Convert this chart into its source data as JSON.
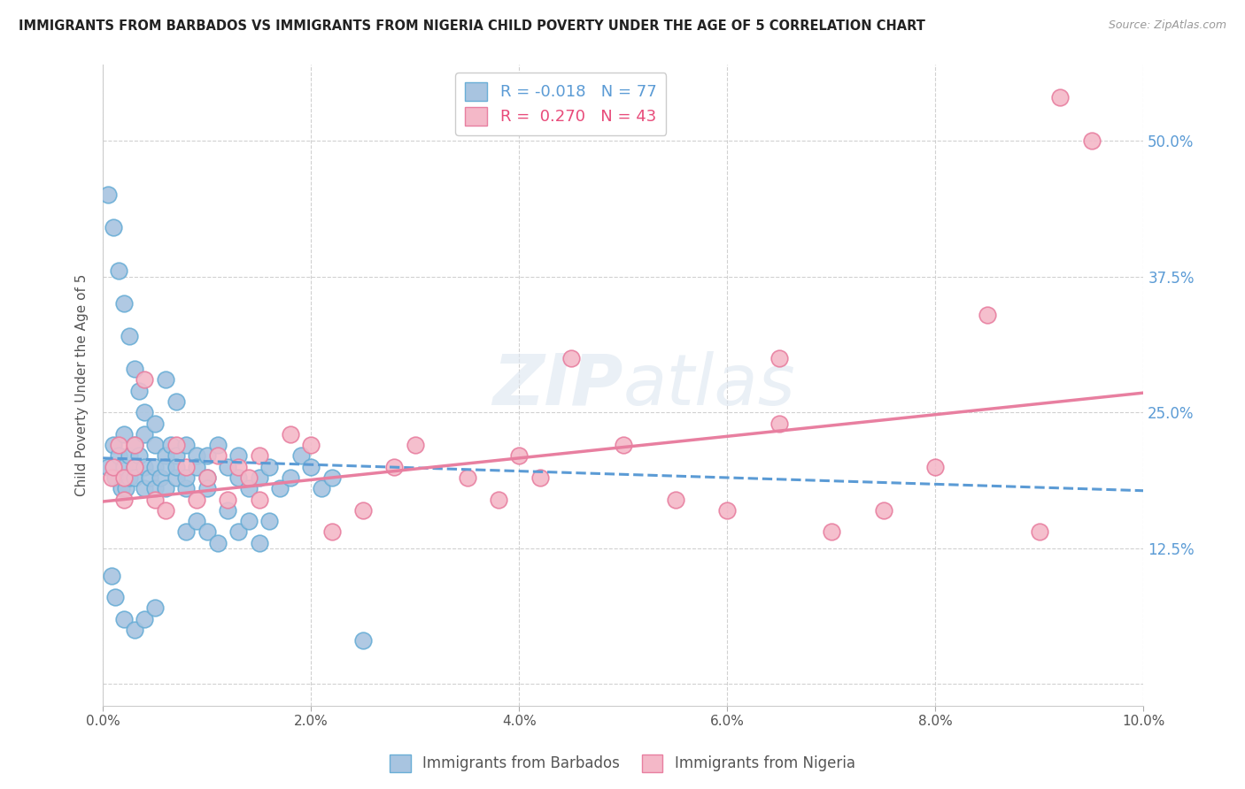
{
  "title": "IMMIGRANTS FROM BARBADOS VS IMMIGRANTS FROM NIGERIA CHILD POVERTY UNDER THE AGE OF 5 CORRELATION CHART",
  "source": "Source: ZipAtlas.com",
  "ylabel": "Child Poverty Under the Age of 5",
  "ytick_labels": [
    "",
    "12.5%",
    "25.0%",
    "37.5%",
    "50.0%"
  ],
  "ytick_values": [
    0.0,
    0.125,
    0.25,
    0.375,
    0.5
  ],
  "xmin": 0.0,
  "xmax": 0.1,
  "ymin": -0.02,
  "ymax": 0.57,
  "barbados_color": "#a8c4e0",
  "barbados_edge": "#6aaed6",
  "nigeria_color": "#f4b8c8",
  "nigeria_edge": "#e87fa0",
  "trend_barbados_color": "#5b9bd5",
  "trend_nigeria_color": "#e87fa0",
  "r_barbados": -0.018,
  "n_barbados": 77,
  "r_nigeria": 0.27,
  "n_nigeria": 43,
  "legend_label_barbados": "Immigrants from Barbados",
  "legend_label_nigeria": "Immigrants from Nigeria",
  "watermark": "ZIPatlas",
  "trend_b_x0": 0.0,
  "trend_b_y0": 0.208,
  "trend_b_x1": 0.1,
  "trend_b_y1": 0.178,
  "trend_n_x0": 0.0,
  "trend_n_y0": 0.168,
  "trend_n_x1": 0.1,
  "trend_n_y1": 0.268,
  "barbados_x": [
    0.0005,
    0.001,
    0.0012,
    0.0015,
    0.0018,
    0.002,
    0.002,
    0.0022,
    0.0025,
    0.0025,
    0.003,
    0.003,
    0.003,
    0.0035,
    0.004,
    0.004,
    0.004,
    0.0045,
    0.005,
    0.005,
    0.005,
    0.0055,
    0.006,
    0.006,
    0.006,
    0.0065,
    0.007,
    0.007,
    0.007,
    0.008,
    0.008,
    0.008,
    0.009,
    0.009,
    0.01,
    0.01,
    0.01,
    0.011,
    0.012,
    0.013,
    0.013,
    0.014,
    0.015,
    0.016,
    0.017,
    0.018,
    0.019,
    0.02,
    0.021,
    0.022,
    0.0005,
    0.001,
    0.0015,
    0.002,
    0.0025,
    0.003,
    0.0035,
    0.004,
    0.005,
    0.006,
    0.007,
    0.008,
    0.009,
    0.01,
    0.011,
    0.012,
    0.013,
    0.014,
    0.015,
    0.016,
    0.0008,
    0.0012,
    0.002,
    0.003,
    0.004,
    0.005,
    0.025
  ],
  "barbados_y": [
    0.2,
    0.22,
    0.19,
    0.21,
    0.18,
    0.2,
    0.23,
    0.18,
    0.19,
    0.21,
    0.2,
    0.22,
    0.19,
    0.21,
    0.18,
    0.2,
    0.23,
    0.19,
    0.2,
    0.22,
    0.18,
    0.19,
    0.21,
    0.2,
    0.18,
    0.22,
    0.19,
    0.21,
    0.2,
    0.18,
    0.22,
    0.19,
    0.21,
    0.2,
    0.19,
    0.21,
    0.18,
    0.22,
    0.2,
    0.19,
    0.21,
    0.18,
    0.19,
    0.2,
    0.18,
    0.19,
    0.21,
    0.2,
    0.18,
    0.19,
    0.45,
    0.42,
    0.38,
    0.35,
    0.32,
    0.29,
    0.27,
    0.25,
    0.24,
    0.28,
    0.26,
    0.14,
    0.15,
    0.14,
    0.13,
    0.16,
    0.14,
    0.15,
    0.13,
    0.15,
    0.1,
    0.08,
    0.06,
    0.05,
    0.06,
    0.07,
    0.04
  ],
  "nigeria_x": [
    0.0008,
    0.001,
    0.0015,
    0.002,
    0.002,
    0.003,
    0.003,
    0.004,
    0.005,
    0.006,
    0.007,
    0.008,
    0.009,
    0.01,
    0.011,
    0.012,
    0.013,
    0.014,
    0.015,
    0.015,
    0.018,
    0.02,
    0.022,
    0.025,
    0.028,
    0.03,
    0.035,
    0.038,
    0.04,
    0.042,
    0.045,
    0.05,
    0.055,
    0.06,
    0.065,
    0.065,
    0.07,
    0.075,
    0.08,
    0.085,
    0.09,
    0.092,
    0.095
  ],
  "nigeria_y": [
    0.19,
    0.2,
    0.22,
    0.19,
    0.17,
    0.2,
    0.22,
    0.28,
    0.17,
    0.16,
    0.22,
    0.2,
    0.17,
    0.19,
    0.21,
    0.17,
    0.2,
    0.19,
    0.21,
    0.17,
    0.23,
    0.22,
    0.14,
    0.16,
    0.2,
    0.22,
    0.19,
    0.17,
    0.21,
    0.19,
    0.3,
    0.22,
    0.17,
    0.16,
    0.24,
    0.3,
    0.14,
    0.16,
    0.2,
    0.34,
    0.14,
    0.54,
    0.5
  ]
}
